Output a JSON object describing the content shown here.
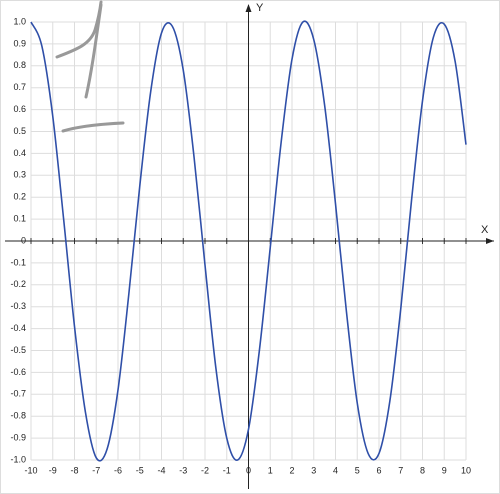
{
  "chart_data": {
    "type": "line",
    "x_label": "X",
    "y_label": "Y",
    "x": [
      -10,
      -9.5,
      -9,
      -8.5,
      -8,
      -7.5,
      -7,
      -6.5,
      -6,
      -5.5,
      -5,
      -4.5,
      -4,
      -3.5,
      -3,
      -2.5,
      -2,
      -1.5,
      -1,
      -0.5,
      0,
      0.5,
      1,
      1.5,
      2,
      2.5,
      3,
      3.5,
      4,
      4.5,
      5,
      5.5,
      6,
      6.5,
      7,
      7.5,
      8,
      8.5,
      9,
      9.5,
      10
    ],
    "series": [
      {
        "color": "#2f4fa8",
        "values": [
          1.0,
          0.89,
          0.57,
          0.1,
          -0.39,
          -0.78,
          -0.99,
          -0.95,
          -0.68,
          -0.24,
          0.25,
          0.68,
          0.95,
          0.98,
          0.78,
          0.38,
          -0.11,
          -0.58,
          -0.9,
          -1.0,
          -0.86,
          -0.5,
          -0.03,
          0.45,
          0.83,
          1.0,
          0.92,
          0.62,
          0.17,
          -0.32,
          -0.74,
          -0.97,
          -0.97,
          -0.73,
          -0.31,
          0.19,
          0.64,
          0.93,
          0.99,
          0.82,
          0.44
        ]
      }
    ],
    "xlim": [
      -10,
      10
    ],
    "ylim": [
      -1,
      1
    ],
    "xticks": [
      -10,
      -9,
      -8,
      -7,
      -6,
      -5,
      -4,
      -3,
      -2,
      -1,
      0,
      1,
      2,
      3,
      4,
      5,
      6,
      7,
      8,
      9,
      10
    ],
    "yticks": [
      {
        "value": 1,
        "label": "1.0"
      },
      0.9,
      0.8,
      0.7,
      0.6,
      0.5,
      0.4,
      0.3,
      0.2,
      0.1,
      0,
      -0.1,
      -0.2,
      -0.3,
      -0.4,
      -0.5,
      -0.6,
      -0.7,
      -0.8,
      -0.9,
      {
        "value": -1,
        "label": "-1.0"
      }
    ],
    "grid": true
  }
}
